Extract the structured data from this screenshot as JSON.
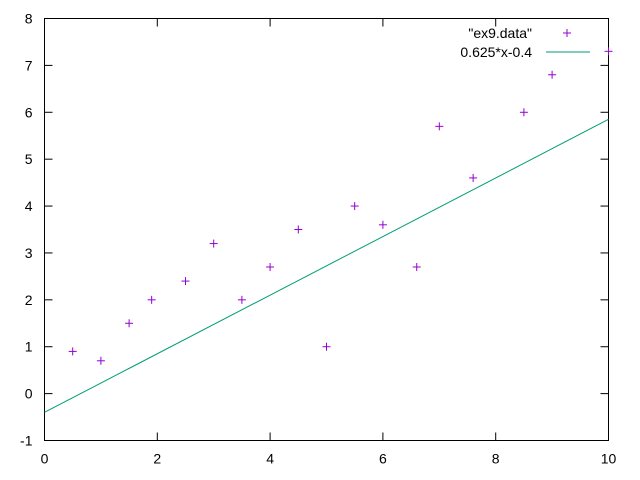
{
  "chart_data": {
    "type": "scatter",
    "title": "",
    "xlabel": "",
    "ylabel": "",
    "xlim": [
      0,
      10
    ],
    "ylim": [
      -1,
      8
    ],
    "x_ticks": [
      "0",
      "2",
      "4",
      "6",
      "8",
      "10"
    ],
    "y_ticks": [
      "-1",
      "0",
      "1",
      "2",
      "3",
      "4",
      "5",
      "6",
      "7",
      "8"
    ],
    "grid": false,
    "legend_position": "top-right",
    "series": [
      {
        "name": "\"ex9.data\"",
        "type": "scatter",
        "marker": "plus",
        "color": "#9400d3",
        "points": [
          [
            0.5,
            0.9
          ],
          [
            1.0,
            0.7
          ],
          [
            1.5,
            1.5
          ],
          [
            1.9,
            2.0
          ],
          [
            2.5,
            2.4
          ],
          [
            3.0,
            3.2
          ],
          [
            3.5,
            2.0
          ],
          [
            4.0,
            2.7
          ],
          [
            4.5,
            3.5
          ],
          [
            5.0,
            1.0
          ],
          [
            5.5,
            4.0
          ],
          [
            6.0,
            3.6
          ],
          [
            6.6,
            2.7
          ],
          [
            7.0,
            5.7
          ],
          [
            7.6,
            4.6
          ],
          [
            8.5,
            6.0
          ],
          [
            9.0,
            6.8
          ],
          [
            10.0,
            7.3
          ]
        ]
      },
      {
        "name": "0.625*x-0.4",
        "type": "line",
        "color": "#009e73",
        "slope": 0.625,
        "intercept": -0.4
      }
    ]
  }
}
